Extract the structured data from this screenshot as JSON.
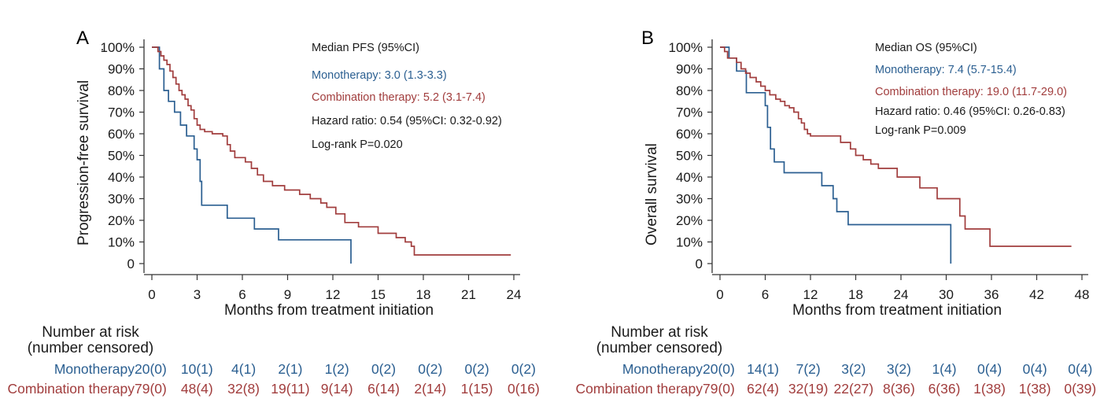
{
  "chart_data": [
    {
      "type": "line",
      "panel_label": "A",
      "xlabel": "Months from treatment initiation",
      "ylabel": "Progression-free survival",
      "ylabel_mark": ".",
      "xlim": [
        0,
        24
      ],
      "ylim": [
        0,
        100
      ],
      "xticks": [
        0,
        3,
        6,
        9,
        12,
        15,
        18,
        21,
        24
      ],
      "yticks": [
        {
          "value": 100,
          "label": "100%"
        },
        {
          "value": 90,
          "label": "90%"
        },
        {
          "value": 80,
          "label": "80%"
        },
        {
          "value": 70,
          "label": "70%"
        },
        {
          "value": 60,
          "label": "60%"
        },
        {
          "value": 50,
          "label": "50%"
        },
        {
          "value": 40,
          "label": "40%"
        },
        {
          "value": 30,
          "label": "30%"
        },
        {
          "value": 20,
          "label": "20%"
        },
        {
          "value": 10,
          "label": "10%"
        },
        {
          "value": 0,
          "label": "0"
        }
      ],
      "annotations": [
        {
          "text": "Median PFS (95%CI)",
          "color": "#1a1a1a"
        },
        {
          "text": "Monotherapy: 3.0 (1.3-3.3)",
          "color": "#2b5f91"
        },
        {
          "text": "Combination therapy: 5.2 (3.1-7.4)",
          "color": "#a13d3d"
        },
        {
          "text": "Hazard ratio: 0.54 (95%CI: 0.32-0.92)",
          "color": "#1a1a1a"
        },
        {
          "text": "Log-rank P=0.020",
          "color": "#1a1a1a"
        }
      ],
      "series": [
        {
          "name": "Monotherapy",
          "color": "#2b5f91",
          "end_drop": true,
          "x": [
            0,
            0.5,
            0.8,
            1.1,
            1.5,
            1.9,
            2.3,
            2.8,
            3.0,
            3.2,
            3.3,
            5.0,
            6.8,
            8.4,
            13.2
          ],
          "y": [
            100,
            90,
            80,
            75,
            70,
            64,
            59,
            53,
            48,
            38,
            27,
            21,
            16,
            11,
            11
          ]
        },
        {
          "name": "Combination therapy",
          "color": "#a13d3d",
          "end_drop": false,
          "x": [
            0,
            0.4,
            0.6,
            0.8,
            1.0,
            1.2,
            1.4,
            1.6,
            1.8,
            2.0,
            2.2,
            2.4,
            2.6,
            2.8,
            3.0,
            3.2,
            3.5,
            4.0,
            4.7,
            5.0,
            5.2,
            5.5,
            6.2,
            6.6,
            7.0,
            7.4,
            8.0,
            8.8,
            9.8,
            10.5,
            11.2,
            11.6,
            12.2,
            12.8,
            13.7,
            15.0,
            16.2,
            16.8,
            17.2,
            17.4,
            23.8
          ],
          "y": [
            100,
            98,
            96,
            94,
            92,
            89,
            86,
            83,
            80,
            78,
            76,
            73,
            71,
            67,
            64,
            62,
            61,
            60,
            59,
            55,
            52,
            49,
            47,
            44,
            41,
            38,
            36,
            34,
            32,
            30,
            28,
            26,
            23,
            19,
            17,
            14,
            12,
            10,
            8,
            4,
            4
          ]
        }
      ],
      "risk_table": {
        "title": "Number at risk",
        "subtitle": "(number censored)",
        "rows": [
          {
            "name": "Monotherapy",
            "color": "#2b5f91",
            "values": [
              "20(0)",
              "10(1)",
              "4(1)",
              "2(1)",
              "1(2)",
              "0(2)",
              "0(2)",
              "0(2)",
              "0(2)"
            ]
          },
          {
            "name": "Combination therapy",
            "color": "#a13d3d",
            "values": [
              "79(0)",
              "48(4)",
              "32(8)",
              "19(11)",
              "9(14)",
              "6(14)",
              "2(14)",
              "1(15)",
              "0(16)"
            ]
          }
        ]
      }
    },
    {
      "type": "line",
      "panel_label": "B",
      "xlabel": "Months from treatment initiation",
      "ylabel": "Overall survival",
      "ylabel_mark": "",
      "xlim": [
        0,
        48
      ],
      "ylim": [
        0,
        100
      ],
      "xticks": [
        0,
        6,
        12,
        18,
        24,
        30,
        36,
        42,
        48
      ],
      "yticks": [
        {
          "value": 100,
          "label": "100%"
        },
        {
          "value": 90,
          "label": "90%"
        },
        {
          "value": 80,
          "label": "80%"
        },
        {
          "value": 70,
          "label": "70%"
        },
        {
          "value": 60,
          "label": "60%"
        },
        {
          "value": 50,
          "label": "50%"
        },
        {
          "value": 40,
          "label": "40%"
        },
        {
          "value": 30,
          "label": "30%"
        },
        {
          "value": 20,
          "label": "20%"
        },
        {
          "value": 10,
          "label": "10%"
        },
        {
          "value": 0,
          "label": "0"
        }
      ],
      "annotations": [
        {
          "text": "Median OS (95%CI)",
          "color": "#1a1a1a"
        },
        {
          "text": "Monotherapy: 7.4 (5.7-15.4)",
          "color": "#2b5f91"
        },
        {
          "text": "Combination therapy: 19.0 (11.7-29.0)",
          "color": "#a13d3d"
        },
        {
          "text": "Hazard ratio: 0.46 (95%CI: 0.26-0.83)",
          "color": "#1a1a1a"
        },
        {
          "text": "Log-rank P=0.009",
          "color": "#1a1a1a"
        }
      ],
      "series": [
        {
          "name": "Monotherapy",
          "color": "#2b5f91",
          "end_drop": true,
          "x": [
            0,
            1.2,
            2.2,
            3.5,
            6.0,
            6.3,
            6.7,
            7.2,
            8.5,
            13.5,
            15.0,
            15.5,
            17.0,
            30.6
          ],
          "y": [
            100,
            95,
            89,
            79,
            73,
            63,
            53,
            47,
            42,
            36,
            30,
            24,
            18,
            18
          ]
        },
        {
          "name": "Combination therapy",
          "color": "#a13d3d",
          "end_drop": false,
          "x": [
            0,
            0.6,
            1.0,
            2.2,
            2.8,
            3.4,
            4.0,
            4.8,
            5.4,
            6.0,
            6.6,
            7.4,
            8.0,
            8.6,
            9.2,
            9.8,
            10.4,
            10.8,
            11.2,
            11.6,
            12.0,
            12.6,
            16.0,
            17.3,
            18.0,
            19.0,
            20.0,
            21.0,
            23.5,
            26.5,
            28.8,
            31.8,
            32.5,
            35.8,
            46.6
          ],
          "y": [
            100,
            98,
            95,
            93,
            90,
            88,
            86,
            84,
            82,
            80,
            78,
            76,
            75,
            73,
            72,
            70,
            67,
            65,
            62,
            60,
            59,
            59,
            56,
            53,
            50,
            48,
            46,
            44,
            40,
            35,
            30,
            22,
            16,
            8,
            8
          ]
        }
      ],
      "risk_table": {
        "title": "Number at risk",
        "subtitle": "(number censored)",
        "rows": [
          {
            "name": "Monotherapy",
            "color": "#2b5f91",
            "values": [
              "20(0)",
              "14(1)",
              "7(2)",
              "3(2)",
              "3(2)",
              "1(4)",
              "0(4)",
              "0(4)",
              "0(4)"
            ]
          },
          {
            "name": "Combination therapy",
            "color": "#a13d3d",
            "values": [
              "79(0)",
              "62(4)",
              "32(19)",
              "22(27)",
              "8(36)",
              "6(36)",
              "1(38)",
              "1(38)",
              "0(39)"
            ]
          }
        ]
      }
    }
  ]
}
